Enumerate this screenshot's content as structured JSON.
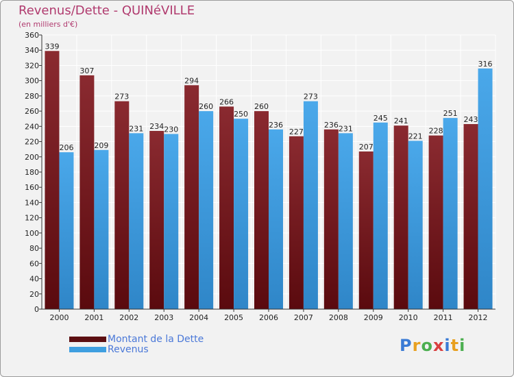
{
  "title": "Revenus/Dette - QUINéVILLE",
  "subtitle": "(en milliers d'€)",
  "logo": {
    "text": "Proxiti",
    "colors": [
      "#3a7bd5",
      "#e8a020",
      "#4caf50",
      "#d94040",
      "#3a7bd5",
      "#e8a020",
      "#4caf50"
    ]
  },
  "colors": {
    "dette": "#7a1e22",
    "revenus": "#3f9fe0",
    "background": "#f2f2f2",
    "grid": "#ffffff",
    "title": "#b03a6e",
    "legend_text": "#4a78d8"
  },
  "legend": [
    {
      "label": "Montant de la Dette",
      "color": "#5c0f12"
    },
    {
      "label": "Revenus",
      "color": "#3f9fe0"
    }
  ],
  "chart_data": {
    "type": "bar",
    "categories": [
      "2000",
      "2001",
      "2002",
      "2003",
      "2004",
      "2005",
      "2006",
      "2007",
      "2008",
      "2009",
      "2010",
      "2011",
      "2012"
    ],
    "series": [
      {
        "name": "Montant de la Dette",
        "values": [
          339,
          307,
          273,
          234,
          294,
          266,
          260,
          227,
          236,
          207,
          241,
          228,
          243
        ]
      },
      {
        "name": "Revenus",
        "values": [
          206,
          209,
          231,
          230,
          260,
          250,
          236,
          273,
          231,
          245,
          221,
          251,
          316
        ]
      }
    ],
    "ylim": [
      0,
      360
    ],
    "yticks": [
      0,
      20,
      40,
      60,
      80,
      100,
      120,
      140,
      160,
      180,
      200,
      220,
      240,
      260,
      280,
      300,
      320,
      340,
      360
    ],
    "grid": true,
    "legend_position": "bottom-left"
  }
}
